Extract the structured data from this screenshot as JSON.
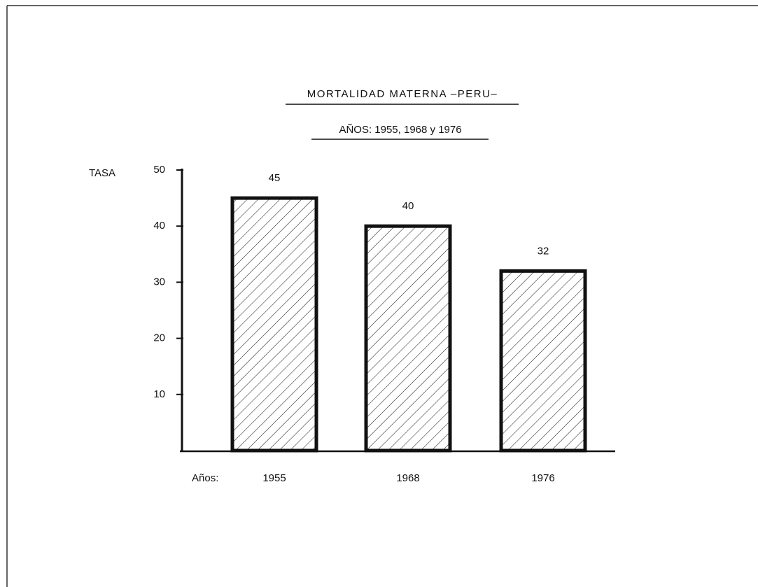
{
  "chart_data": {
    "type": "bar",
    "title": "MORTALIDAD MATERNA –PERU–",
    "subtitle": "AÑOS: 1955, 1968 y 1976",
    "y_label": "TASA",
    "x_label": "Años:",
    "categories": [
      "1955",
      "1968",
      "1976"
    ],
    "values": [
      45,
      40,
      32
    ],
    "color": "#111111",
    "ylim": [
      0,
      50
    ],
    "yticks": [
      10,
      20,
      30,
      40,
      50
    ]
  }
}
